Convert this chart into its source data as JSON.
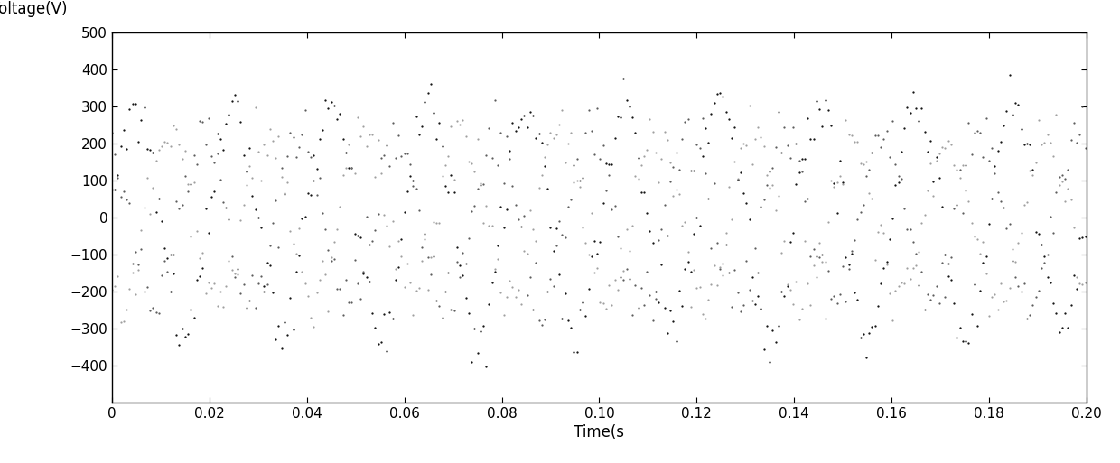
{
  "xlabel": "Time(s",
  "ylabel": "Voltage(V)",
  "xlim": [
    0,
    0.2
  ],
  "ylim": [
    -500,
    500
  ],
  "yticks": [
    -400,
    -300,
    -200,
    -100,
    0,
    100,
    200,
    300,
    400,
    500
  ],
  "xticks": [
    0,
    0.02,
    0.04,
    0.06,
    0.08,
    0.1,
    0.12,
    0.14,
    0.16,
    0.18,
    0.2
  ],
  "freq": 50,
  "fs": 5000,
  "duration": 0.2,
  "amplitude1": 311,
  "amplitude2": 220,
  "noise_level": 45,
  "background_color": "#ffffff",
  "line_color1": "#000000",
  "line_color2": "#444444",
  "line_color3": "#888888",
  "markersize": 1.2,
  "seed": 7,
  "figwidth": 12.4,
  "figheight": 5.13,
  "dpi": 100
}
